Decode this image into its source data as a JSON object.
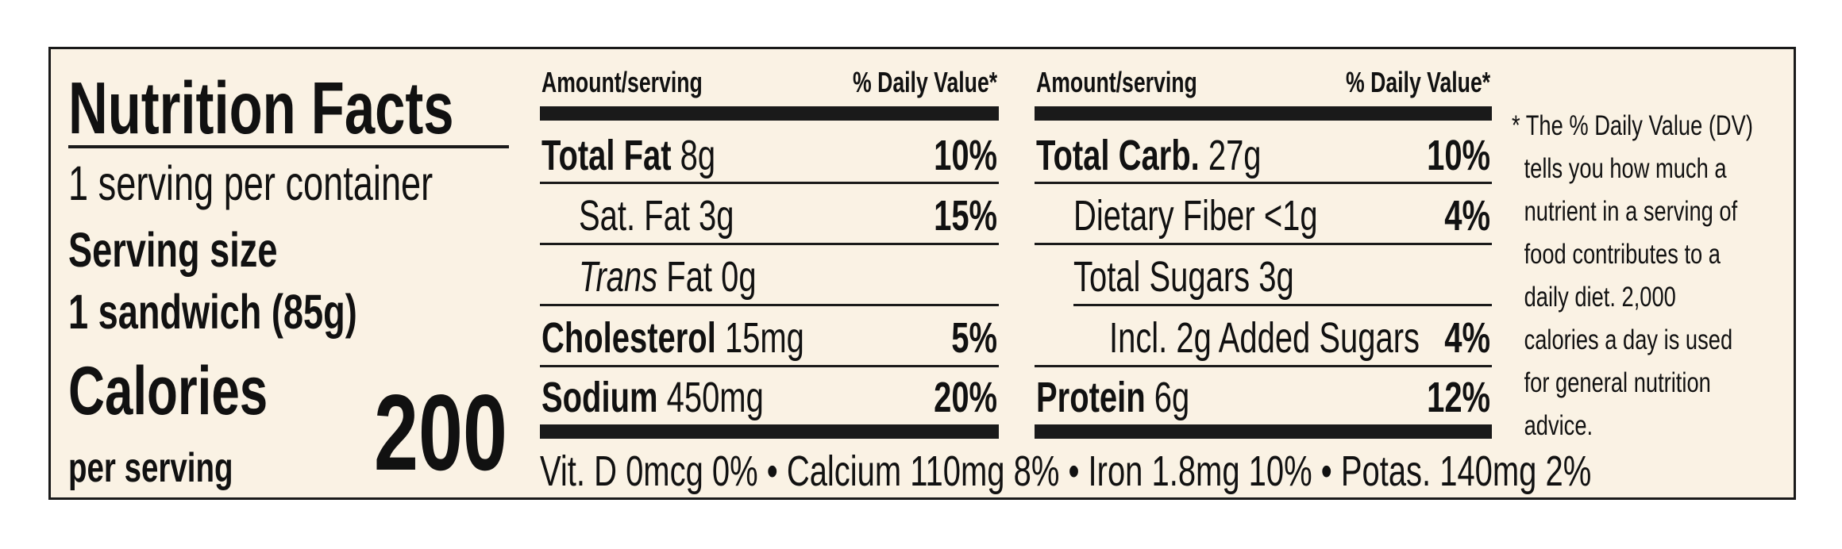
{
  "title": "Nutrition Facts",
  "servings_per_container": "1 serving per container",
  "serving_size_label": "Serving size",
  "serving_size_value": "1 sandwich (85g)",
  "calories_label": "Calories",
  "calories_sublabel": "per serving",
  "calories_value": "200",
  "header_amount": "Amount/serving",
  "header_dv": "% Daily Value*",
  "left_rows": [
    {
      "name": "Total Fat",
      "amount": "8g",
      "dv": "10%"
    },
    {
      "name": "Sat. Fat",
      "amount": "3g",
      "dv": "15%"
    },
    {
      "name": "Trans",
      "amount": "Fat 0g",
      "dv": ""
    },
    {
      "name": "Cholesterol",
      "amount": "15mg",
      "dv": "5%"
    },
    {
      "name": "Sodium",
      "amount": "450mg",
      "dv": "20%"
    }
  ],
  "right_rows": [
    {
      "name": "Total Carb.",
      "amount": "27g",
      "dv": "10%"
    },
    {
      "name": "Dietary Fiber",
      "amount": "<1g",
      "dv": "4%"
    },
    {
      "name": "Total Sugars",
      "amount": "3g",
      "dv": ""
    },
    {
      "name": "Incl. 2g Added Sugars",
      "amount": "",
      "dv": "4%"
    },
    {
      "name": "Protein",
      "amount": "6g",
      "dv": "12%"
    }
  ],
  "vitamins_line": "Vit. D 0mcg 0% • Calcium 110mg 8% • Iron 1.8mg 10% • Potas. 140mg 2%",
  "footnote_lines": [
    "* The % Daily Value (DV)",
    "tells you how much a",
    "nutrient in a serving of",
    "food contributes to a",
    "daily diet. 2,000",
    "calories a day is used",
    "for general nutrition",
    "advice."
  ],
  "colors": {
    "background": "#faf2e4",
    "ink": "#1a1a1a"
  }
}
